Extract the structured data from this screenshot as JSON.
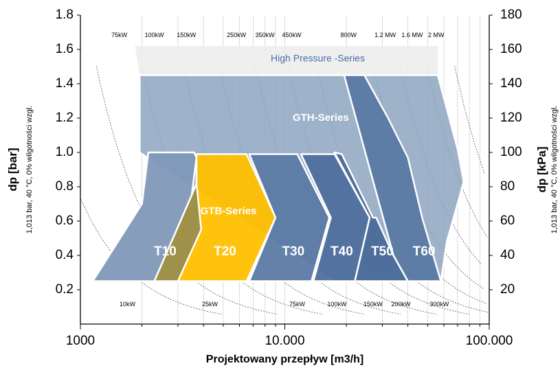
{
  "chart_data": {
    "type": "area",
    "title": "",
    "xlabel": "Projektowany przepływ [m3/h]",
    "ylabel_left": "dp [bar]",
    "ylabel_left_sub": "1,013 bar, 40 °C, 0% wilgotności wzgl.",
    "ylabel_right": "dp [kPa]",
    "ylabel_right_sub": "1,013 bar, 40 °C, 0% wilgotności wzgl.",
    "x_scale": "log",
    "xlim": [
      1000,
      100000
    ],
    "ylim": [
      0,
      1.8
    ],
    "x_ticks": [
      {
        "value": 1000,
        "label": "1000"
      },
      {
        "value": 10000,
        "label": "10.000"
      },
      {
        "value": 100000,
        "label": "100.000"
      }
    ],
    "y_left_ticks": [
      {
        "value": 0.2,
        "label": "0.2"
      },
      {
        "value": 0.4,
        "label": "0.4"
      },
      {
        "value": 0.6,
        "label": "0.6"
      },
      {
        "value": 0.8,
        "label": "0.8"
      },
      {
        "value": 1.0,
        "label": "1.0"
      },
      {
        "value": 1.2,
        "label": "1.2"
      },
      {
        "value": 1.4,
        "label": "1.4"
      },
      {
        "value": 1.6,
        "label": "1.6"
      },
      {
        "value": 1.8,
        "label": "1.8"
      }
    ],
    "y_right_ticks": [
      {
        "value": 0.2,
        "label": "20"
      },
      {
        "value": 0.4,
        "label": "40"
      },
      {
        "value": 0.6,
        "label": "60"
      },
      {
        "value": 0.8,
        "label": "80"
      },
      {
        "value": 1.0,
        "label": "100"
      },
      {
        "value": 1.2,
        "label": "120"
      },
      {
        "value": 1.4,
        "label": "140"
      },
      {
        "value": 1.6,
        "label": "160"
      },
      {
        "value": 1.8,
        "label": "180"
      }
    ],
    "grid": "vertical",
    "power_top": [
      {
        "label": "75kW",
        "x": 1550
      },
      {
        "label": "100kW",
        "x": 2300
      },
      {
        "label": "150kW",
        "x": 3300
      },
      {
        "label": "250kW",
        "x": 5800
      },
      {
        "label": "350kW",
        "x": 8000
      },
      {
        "label": "450kW",
        "x": 10800
      },
      {
        "label": "800W",
        "x": 20500
      },
      {
        "label": "1.2 MW",
        "x": 31000
      },
      {
        "label": "1.6 MW",
        "x": 42000
      },
      {
        "label": "2 MW",
        "x": 55000
      }
    ],
    "power_bottom": [
      {
        "label": "10kW",
        "x": 1700
      },
      {
        "label": "25kW",
        "x": 4300
      },
      {
        "label": "75kW",
        "x": 11500
      },
      {
        "label": "100kW",
        "x": 18000
      },
      {
        "label": "150kW",
        "x": 27000
      },
      {
        "label": "200kW",
        "x": 37000
      },
      {
        "label": "300kW",
        "x": 57000
      }
    ],
    "series_labels": {
      "high_pressure": "High Pressure -Series",
      "gth": "GTH-Series",
      "gtb": "GTB-Series"
    },
    "zones": [
      {
        "name": "High Pressure -Series",
        "kind": "hp",
        "color": "#ededed",
        "label_at": [
          14500,
          1.545
        ],
        "points": [
          [
            1950,
            1.45
          ],
          [
            1850,
            1.62
          ],
          [
            56000,
            1.62
          ],
          [
            56000,
            1.45
          ]
        ]
      },
      {
        "name": "GTH-Series",
        "kind": "gth",
        "color": "#8da4c1",
        "label_at": [
          15000,
          1.2
        ],
        "points": [
          [
            1950,
            1.45
          ],
          [
            56000,
            1.45
          ],
          [
            70000,
            1.02
          ],
          [
            75000,
            0.83
          ],
          [
            70000,
            0.7
          ],
          [
            62000,
            0.48
          ],
          [
            58000,
            0.25
          ],
          [
            17500,
            0.25
          ],
          [
            1950,
            1.0
          ]
        ]
      },
      {
        "name": "T10",
        "kind": "gtb",
        "color": "#7f98b8",
        "label_at": [
          2600,
          0.42
        ],
        "points": [
          [
            2150,
            1.0
          ],
          [
            2000,
            0.7
          ],
          [
            1150,
            0.25
          ],
          [
            2300,
            0.25
          ],
          [
            3500,
            0.75
          ],
          [
            3700,
            0.97
          ],
          [
            3600,
            1.0
          ]
        ]
      },
      {
        "name": "T20",
        "kind": "gtb",
        "color": "#ffc000",
        "label_at": [
          5100,
          0.42
        ],
        "points": [
          [
            3700,
            0.99
          ],
          [
            6500,
            0.99
          ],
          [
            9000,
            0.62
          ],
          [
            6500,
            0.25
          ],
          [
            3000,
            0.25
          ],
          [
            3900,
            0.55
          ],
          [
            3700,
            0.8
          ]
        ]
      },
      {
        "name": "GTB-Series",
        "kind": "gtb_overlay",
        "color": "#9a8a40",
        "label_at": [
          5300,
          0.655
        ],
        "points": [
          [
            3500,
            0.75
          ],
          [
            3700,
            0.82
          ],
          [
            3900,
            0.55
          ],
          [
            3000,
            0.25
          ],
          [
            2300,
            0.25
          ]
        ]
      },
      {
        "name": "T30",
        "kind": "gtb",
        "color": "#5b7aa4",
        "label_at": [
          11000,
          0.42
        ],
        "points": [
          [
            6700,
            0.99
          ],
          [
            11500,
            0.99
          ],
          [
            16500,
            0.62
          ],
          [
            13500,
            0.25
          ],
          [
            6700,
            0.25
          ],
          [
            9000,
            0.62
          ]
        ]
      },
      {
        "name": "T40",
        "kind": "gtb",
        "color": "#4f6f9c",
        "label_at": [
          19000,
          0.42
        ],
        "points": [
          [
            12000,
            0.99
          ],
          [
            17500,
            0.99
          ],
          [
            26000,
            0.62
          ],
          [
            22000,
            0.25
          ],
          [
            13800,
            0.25
          ],
          [
            16800,
            0.62
          ]
        ]
      },
      {
        "name": "T50",
        "kind": "gtb",
        "color": "#4a6b98",
        "label_at": [
          30000,
          0.42
        ],
        "points": [
          [
            17500,
            1.0
          ],
          [
            19000,
            0.99
          ],
          [
            27000,
            0.62
          ],
          [
            28000,
            0.62
          ],
          [
            34000,
            0.4
          ],
          [
            40000,
            0.25
          ],
          [
            22000,
            0.25
          ],
          [
            26000,
            0.62
          ]
        ]
      },
      {
        "name": "T60",
        "kind": "gtb",
        "color": "#5a7aa3",
        "label_at": [
          48000,
          0.42
        ],
        "points": [
          [
            19500,
            1.45
          ],
          [
            24500,
            1.45
          ],
          [
            32000,
            1.2
          ],
          [
            40000,
            0.97
          ],
          [
            47000,
            0.62
          ],
          [
            58000,
            0.25
          ],
          [
            40000,
            0.25
          ],
          [
            34000,
            0.4
          ]
        ]
      }
    ],
    "dotted_curves": "power contour lines (dotted, decreasing with flow)"
  }
}
